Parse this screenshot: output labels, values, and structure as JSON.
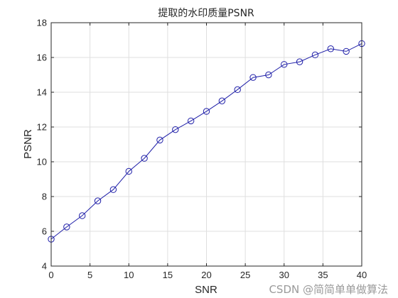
{
  "chart_data": {
    "type": "line",
    "title": "提取的水印质量PSNR",
    "xlabel": "SNR",
    "ylabel": "PSNR",
    "xlim": [
      0,
      40
    ],
    "ylim": [
      4,
      18
    ],
    "x_ticks": [
      "0",
      "5",
      "10",
      "15",
      "20",
      "25",
      "30",
      "35",
      "40"
    ],
    "y_ticks": [
      "4",
      "6",
      "8",
      "10",
      "12",
      "14",
      "16",
      "18"
    ],
    "grid": true,
    "series": [
      {
        "marker": "circle",
        "color": "#1f1fa8",
        "x": [
          0,
          2,
          4,
          6,
          8,
          10,
          12,
          14,
          16,
          18,
          20,
          22,
          24,
          26,
          28,
          30,
          32,
          34,
          36,
          38,
          40
        ],
        "y": [
          5.55,
          6.25,
          6.9,
          7.75,
          8.4,
          9.45,
          10.2,
          11.25,
          11.85,
          12.35,
          12.9,
          13.5,
          14.15,
          14.85,
          15.0,
          15.6,
          15.75,
          16.15,
          16.5,
          16.35,
          16.8
        ]
      }
    ]
  },
  "watermark": "CSDN @简简单单做算法"
}
